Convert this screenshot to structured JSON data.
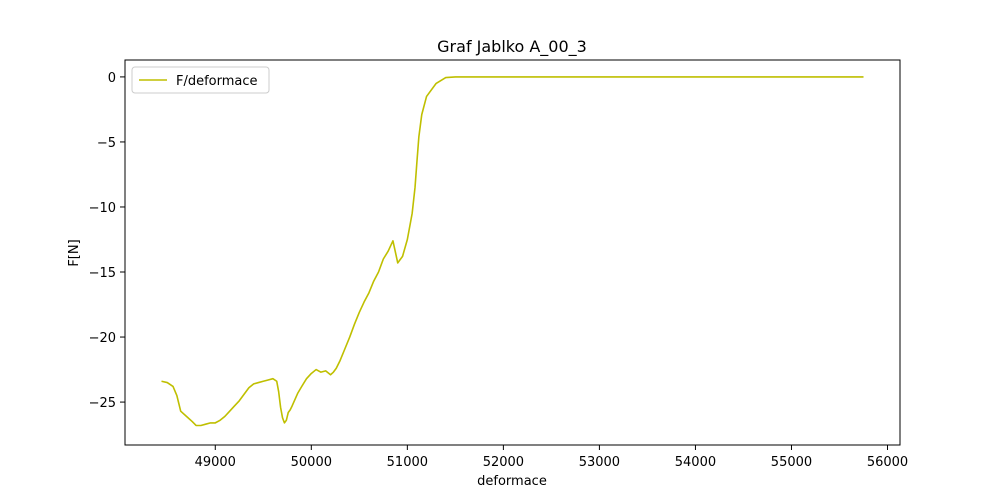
{
  "chart_data": {
    "type": "line",
    "title": "Graf Jablko A_00_3",
    "xlabel": "deformace",
    "ylabel": "F[N]",
    "xlim": [
      48060,
      56130
    ],
    "ylim": [
      -28.3,
      1.3
    ],
    "xticks": [
      49000,
      50000,
      51000,
      52000,
      53000,
      54000,
      55000,
      56000
    ],
    "yticks": [
      0,
      -5,
      -10,
      -15,
      -20,
      -25
    ],
    "xtick_labels": [
      "49000",
      "50000",
      "51000",
      "52000",
      "53000",
      "54000",
      "55000",
      "56000"
    ],
    "ytick_labels": [
      "0",
      "−5",
      "−10",
      "−15",
      "−20",
      "−25"
    ],
    "grid": false,
    "legend_position": "top-left",
    "series": [
      {
        "name": "F/deformace",
        "color": "#bfbf00",
        "x": [
          48440,
          48500,
          48560,
          48600,
          48640,
          48700,
          48760,
          48800,
          48850,
          48900,
          48950,
          49000,
          49050,
          49100,
          49150,
          49200,
          49250,
          49300,
          49350,
          49400,
          49450,
          49500,
          49550,
          49600,
          49640,
          49660,
          49680,
          49700,
          49720,
          49740,
          49760,
          49780,
          49800,
          49830,
          49860,
          49900,
          49950,
          50000,
          50050,
          50100,
          50150,
          50200,
          50230,
          50260,
          50300,
          50350,
          50400,
          50450,
          50500,
          50550,
          50600,
          50650,
          50700,
          50750,
          50800,
          50850,
          50900,
          50950,
          51000,
          51050,
          51080,
          51100,
          51120,
          51150,
          51200,
          51300,
          51400,
          51500,
          51600,
          51700,
          51800,
          51900,
          52000,
          52100,
          52200,
          52300,
          52500,
          53000,
          54000,
          55000,
          55750
        ],
        "y": [
          -23.4,
          -23.5,
          -23.8,
          -24.5,
          -25.7,
          -26.1,
          -26.5,
          -26.8,
          -26.8,
          -26.7,
          -26.6,
          -26.6,
          -26.4,
          -26.1,
          -25.7,
          -25.3,
          -24.9,
          -24.4,
          -23.9,
          -23.6,
          -23.5,
          -23.4,
          -23.3,
          -23.2,
          -23.4,
          -24.2,
          -25.4,
          -26.2,
          -26.6,
          -26.4,
          -25.8,
          -25.6,
          -25.3,
          -24.8,
          -24.3,
          -23.8,
          -23.2,
          -22.8,
          -22.5,
          -22.7,
          -22.6,
          -22.9,
          -22.7,
          -22.4,
          -21.8,
          -20.9,
          -20.0,
          -19.0,
          -18.1,
          -17.3,
          -16.6,
          -15.7,
          -15.0,
          -14.0,
          -13.4,
          -12.6,
          -14.3,
          -13.8,
          -12.5,
          -10.5,
          -8.5,
          -6.5,
          -4.6,
          -2.9,
          -1.5,
          -0.5,
          -0.05,
          0.0,
          0.0,
          0.0,
          0.0,
          0.0,
          0.0,
          0.0,
          0.0,
          0.0,
          0.0,
          0.0,
          0.0,
          0.0,
          0.0
        ]
      }
    ]
  }
}
